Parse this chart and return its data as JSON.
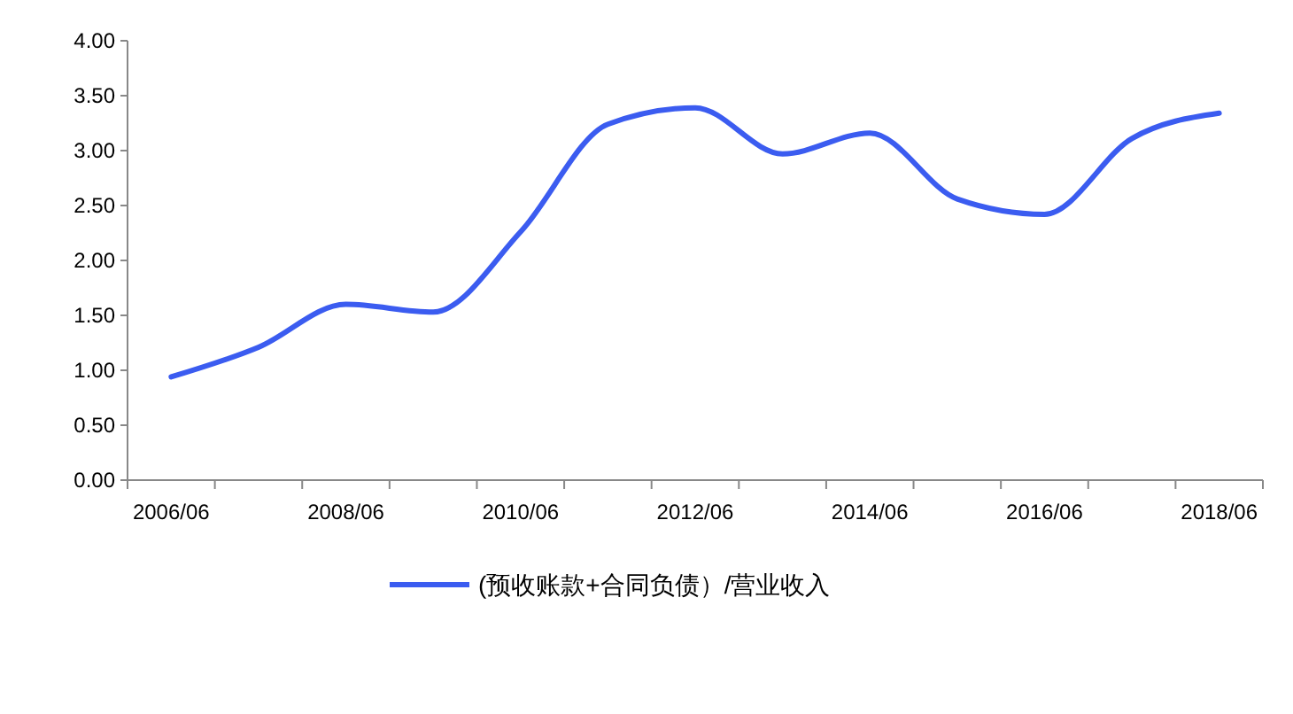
{
  "chart_data": {
    "type": "line",
    "categories": [
      "2006/06",
      null,
      "2008/06",
      null,
      "2010/06",
      null,
      "2012/06",
      null,
      "2014/06",
      null,
      "2016/06",
      null,
      "2018/06"
    ],
    "series": [
      {
        "name": "(预收账款+合同负债）/营业收入",
        "color": "#3b5cf0",
        "values": [
          0.94,
          1.21,
          1.6,
          1.53,
          2.26,
          3.24,
          3.39,
          2.97,
          3.16,
          2.56,
          2.42,
          3.11,
          3.34
        ]
      }
    ],
    "ylim": [
      0,
      4
    ],
    "yticks": [
      {
        "value": 0,
        "label": "0.00"
      },
      {
        "value": 0.5,
        "label": "0.50"
      },
      {
        "value": 1,
        "label": "1.00"
      },
      {
        "value": 1.5,
        "label": "1.50"
      },
      {
        "value": 2,
        "label": "2.00"
      },
      {
        "value": 2.5,
        "label": "2.50"
      },
      {
        "value": 3,
        "label": "3.00"
      },
      {
        "value": 3.5,
        "label": "3.50"
      },
      {
        "value": 4,
        "label": "4.00"
      }
    ],
    "grid": false,
    "legend": "bottom",
    "marker": "none",
    "line_style": "solid"
  }
}
